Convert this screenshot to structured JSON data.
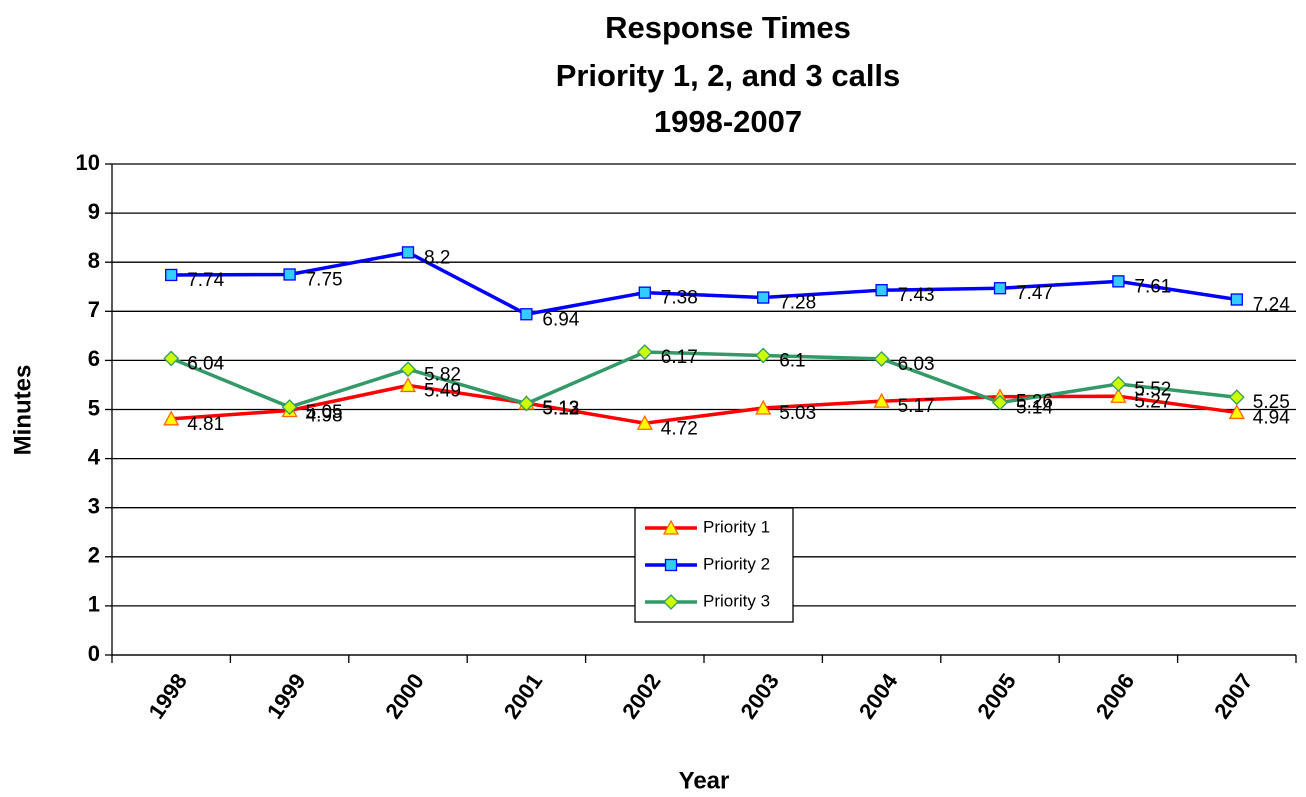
{
  "chart_data": {
    "type": "line",
    "title": [
      "Response Times",
      "Priority 1, 2, and 3 calls",
      "1998-2007"
    ],
    "x_label": "Year",
    "y_label": "Minutes",
    "categories": [
      "1998",
      "1999",
      "2000",
      "2001",
      "2002",
      "2003",
      "2004",
      "2005",
      "2006",
      "2007"
    ],
    "series": [
      {
        "name": "Priority 1",
        "color": "#ff0000",
        "marker": "triangle",
        "marker_color": "#ffff00",
        "values": [
          4.81,
          4.98,
          5.49,
          5.13,
          4.72,
          5.03,
          5.17,
          5.26,
          5.27,
          4.94
        ]
      },
      {
        "name": "Priority 2",
        "color": "#0000ff",
        "marker": "square",
        "marker_color": "#33ccff",
        "values": [
          7.74,
          7.75,
          8.2,
          6.94,
          7.38,
          7.28,
          7.43,
          7.47,
          7.61,
          7.24
        ]
      },
      {
        "name": "Priority 3",
        "color": "#339966",
        "marker": "diamond",
        "marker_color": "#ccff00",
        "values": [
          6.04,
          5.05,
          5.82,
          5.12,
          6.17,
          6.1,
          6.03,
          5.14,
          5.52,
          5.25
        ]
      }
    ],
    "ylim": [
      0,
      10
    ],
    "yticks": [
      0,
      1,
      2,
      3,
      4,
      5,
      6,
      7,
      8,
      9,
      10
    ],
    "grid": true,
    "legend": "bottom-center"
  }
}
